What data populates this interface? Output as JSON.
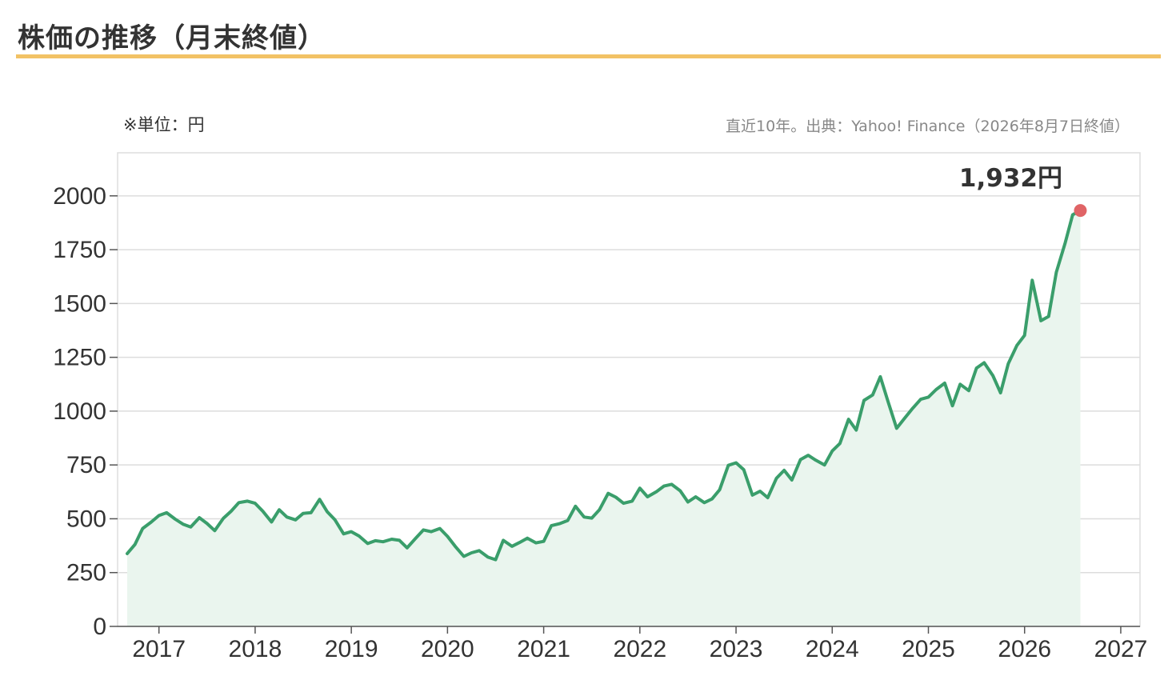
{
  "header": {
    "title": "株価の推移（月末終値）"
  },
  "notes": {
    "unit": "※単位：円",
    "source": "直近10年。出典：Yahoo! Finance（2026年8月7日終値）"
  },
  "colors": {
    "line": "#3a9e6b",
    "area": "#eaf5ee",
    "marker": "#e06466",
    "rule": "#f2c265",
    "grid": "#dddddd"
  },
  "chart_data": {
    "type": "area",
    "ylim": [
      0,
      2200
    ],
    "yticks": [
      0,
      250,
      500,
      750,
      1000,
      1250,
      1500,
      1750,
      2000
    ],
    "xlim": [
      2016.57,
      2027.2
    ],
    "xticks": [
      2017,
      2018,
      2019,
      2020,
      2021,
      2022,
      2023,
      2024,
      2025,
      2026,
      2027
    ],
    "grid": true,
    "last_label": "1,932円",
    "series": [
      {
        "points": [
          [
            2016.67,
            338
          ],
          [
            2016.75,
            380
          ],
          [
            2016.83,
            455
          ],
          [
            2016.92,
            485
          ],
          [
            2017.0,
            515
          ],
          [
            2017.08,
            528
          ],
          [
            2017.17,
            498
          ],
          [
            2017.25,
            475
          ],
          [
            2017.33,
            462
          ],
          [
            2017.42,
            505
          ],
          [
            2017.5,
            478
          ],
          [
            2017.58,
            445
          ],
          [
            2017.67,
            502
          ],
          [
            2017.75,
            535
          ],
          [
            2017.83,
            575
          ],
          [
            2017.92,
            582
          ],
          [
            2018.0,
            572
          ],
          [
            2018.08,
            535
          ],
          [
            2018.17,
            485
          ],
          [
            2018.25,
            542
          ],
          [
            2018.33,
            508
          ],
          [
            2018.42,
            495
          ],
          [
            2018.5,
            525
          ],
          [
            2018.58,
            528
          ],
          [
            2018.67,
            590
          ],
          [
            2018.75,
            532
          ],
          [
            2018.83,
            495
          ],
          [
            2018.92,
            430
          ],
          [
            2019.0,
            440
          ],
          [
            2019.08,
            420
          ],
          [
            2019.17,
            385
          ],
          [
            2019.25,
            398
          ],
          [
            2019.33,
            393
          ],
          [
            2019.42,
            405
          ],
          [
            2019.5,
            400
          ],
          [
            2019.58,
            365
          ],
          [
            2019.67,
            410
          ],
          [
            2019.75,
            448
          ],
          [
            2019.83,
            440
          ],
          [
            2019.92,
            455
          ],
          [
            2020.0,
            418
          ],
          [
            2020.08,
            372
          ],
          [
            2020.17,
            325
          ],
          [
            2020.25,
            342
          ],
          [
            2020.33,
            352
          ],
          [
            2020.42,
            322
          ],
          [
            2020.5,
            310
          ],
          [
            2020.58,
            400
          ],
          [
            2020.67,
            372
          ],
          [
            2020.75,
            390
          ],
          [
            2020.83,
            410
          ],
          [
            2020.92,
            388
          ],
          [
            2021.0,
            395
          ],
          [
            2021.08,
            468
          ],
          [
            2021.17,
            478
          ],
          [
            2021.25,
            492
          ],
          [
            2021.33,
            558
          ],
          [
            2021.42,
            508
          ],
          [
            2021.5,
            503
          ],
          [
            2021.58,
            542
          ],
          [
            2021.67,
            618
          ],
          [
            2021.75,
            600
          ],
          [
            2021.83,
            572
          ],
          [
            2021.92,
            582
          ],
          [
            2022.0,
            642
          ],
          [
            2022.08,
            602
          ],
          [
            2022.17,
            625
          ],
          [
            2022.25,
            652
          ],
          [
            2022.33,
            660
          ],
          [
            2022.42,
            630
          ],
          [
            2022.5,
            578
          ],
          [
            2022.58,
            602
          ],
          [
            2022.67,
            575
          ],
          [
            2022.75,
            592
          ],
          [
            2022.83,
            635
          ],
          [
            2022.92,
            748
          ],
          [
            2023.0,
            760
          ],
          [
            2023.08,
            728
          ],
          [
            2023.17,
            610
          ],
          [
            2023.25,
            628
          ],
          [
            2023.33,
            598
          ],
          [
            2023.42,
            688
          ],
          [
            2023.5,
            725
          ],
          [
            2023.58,
            680
          ],
          [
            2023.67,
            775
          ],
          [
            2023.75,
            795
          ],
          [
            2023.83,
            772
          ],
          [
            2023.92,
            750
          ],
          [
            2024.0,
            815
          ],
          [
            2024.08,
            850
          ],
          [
            2024.17,
            962
          ],
          [
            2024.25,
            912
          ],
          [
            2024.33,
            1050
          ],
          [
            2024.42,
            1075
          ],
          [
            2024.5,
            1160
          ],
          [
            2024.58,
            1045
          ],
          [
            2024.67,
            920
          ],
          [
            2024.75,
            965
          ],
          [
            2024.83,
            1010
          ],
          [
            2024.92,
            1055
          ],
          [
            2025.0,
            1065
          ],
          [
            2025.08,
            1100
          ],
          [
            2025.17,
            1130
          ],
          [
            2025.25,
            1025
          ],
          [
            2025.33,
            1125
          ],
          [
            2025.42,
            1095
          ],
          [
            2025.5,
            1200
          ],
          [
            2025.58,
            1225
          ],
          [
            2025.67,
            1165
          ],
          [
            2025.75,
            1085
          ],
          [
            2025.83,
            1220
          ],
          [
            2025.92,
            1305
          ],
          [
            2026.0,
            1352
          ],
          [
            2026.08,
            1608
          ],
          [
            2026.17,
            1420
          ],
          [
            2026.25,
            1440
          ],
          [
            2026.33,
            1645
          ],
          [
            2026.42,
            1778
          ],
          [
            2026.5,
            1912
          ],
          [
            2026.58,
            1932
          ]
        ]
      }
    ]
  }
}
